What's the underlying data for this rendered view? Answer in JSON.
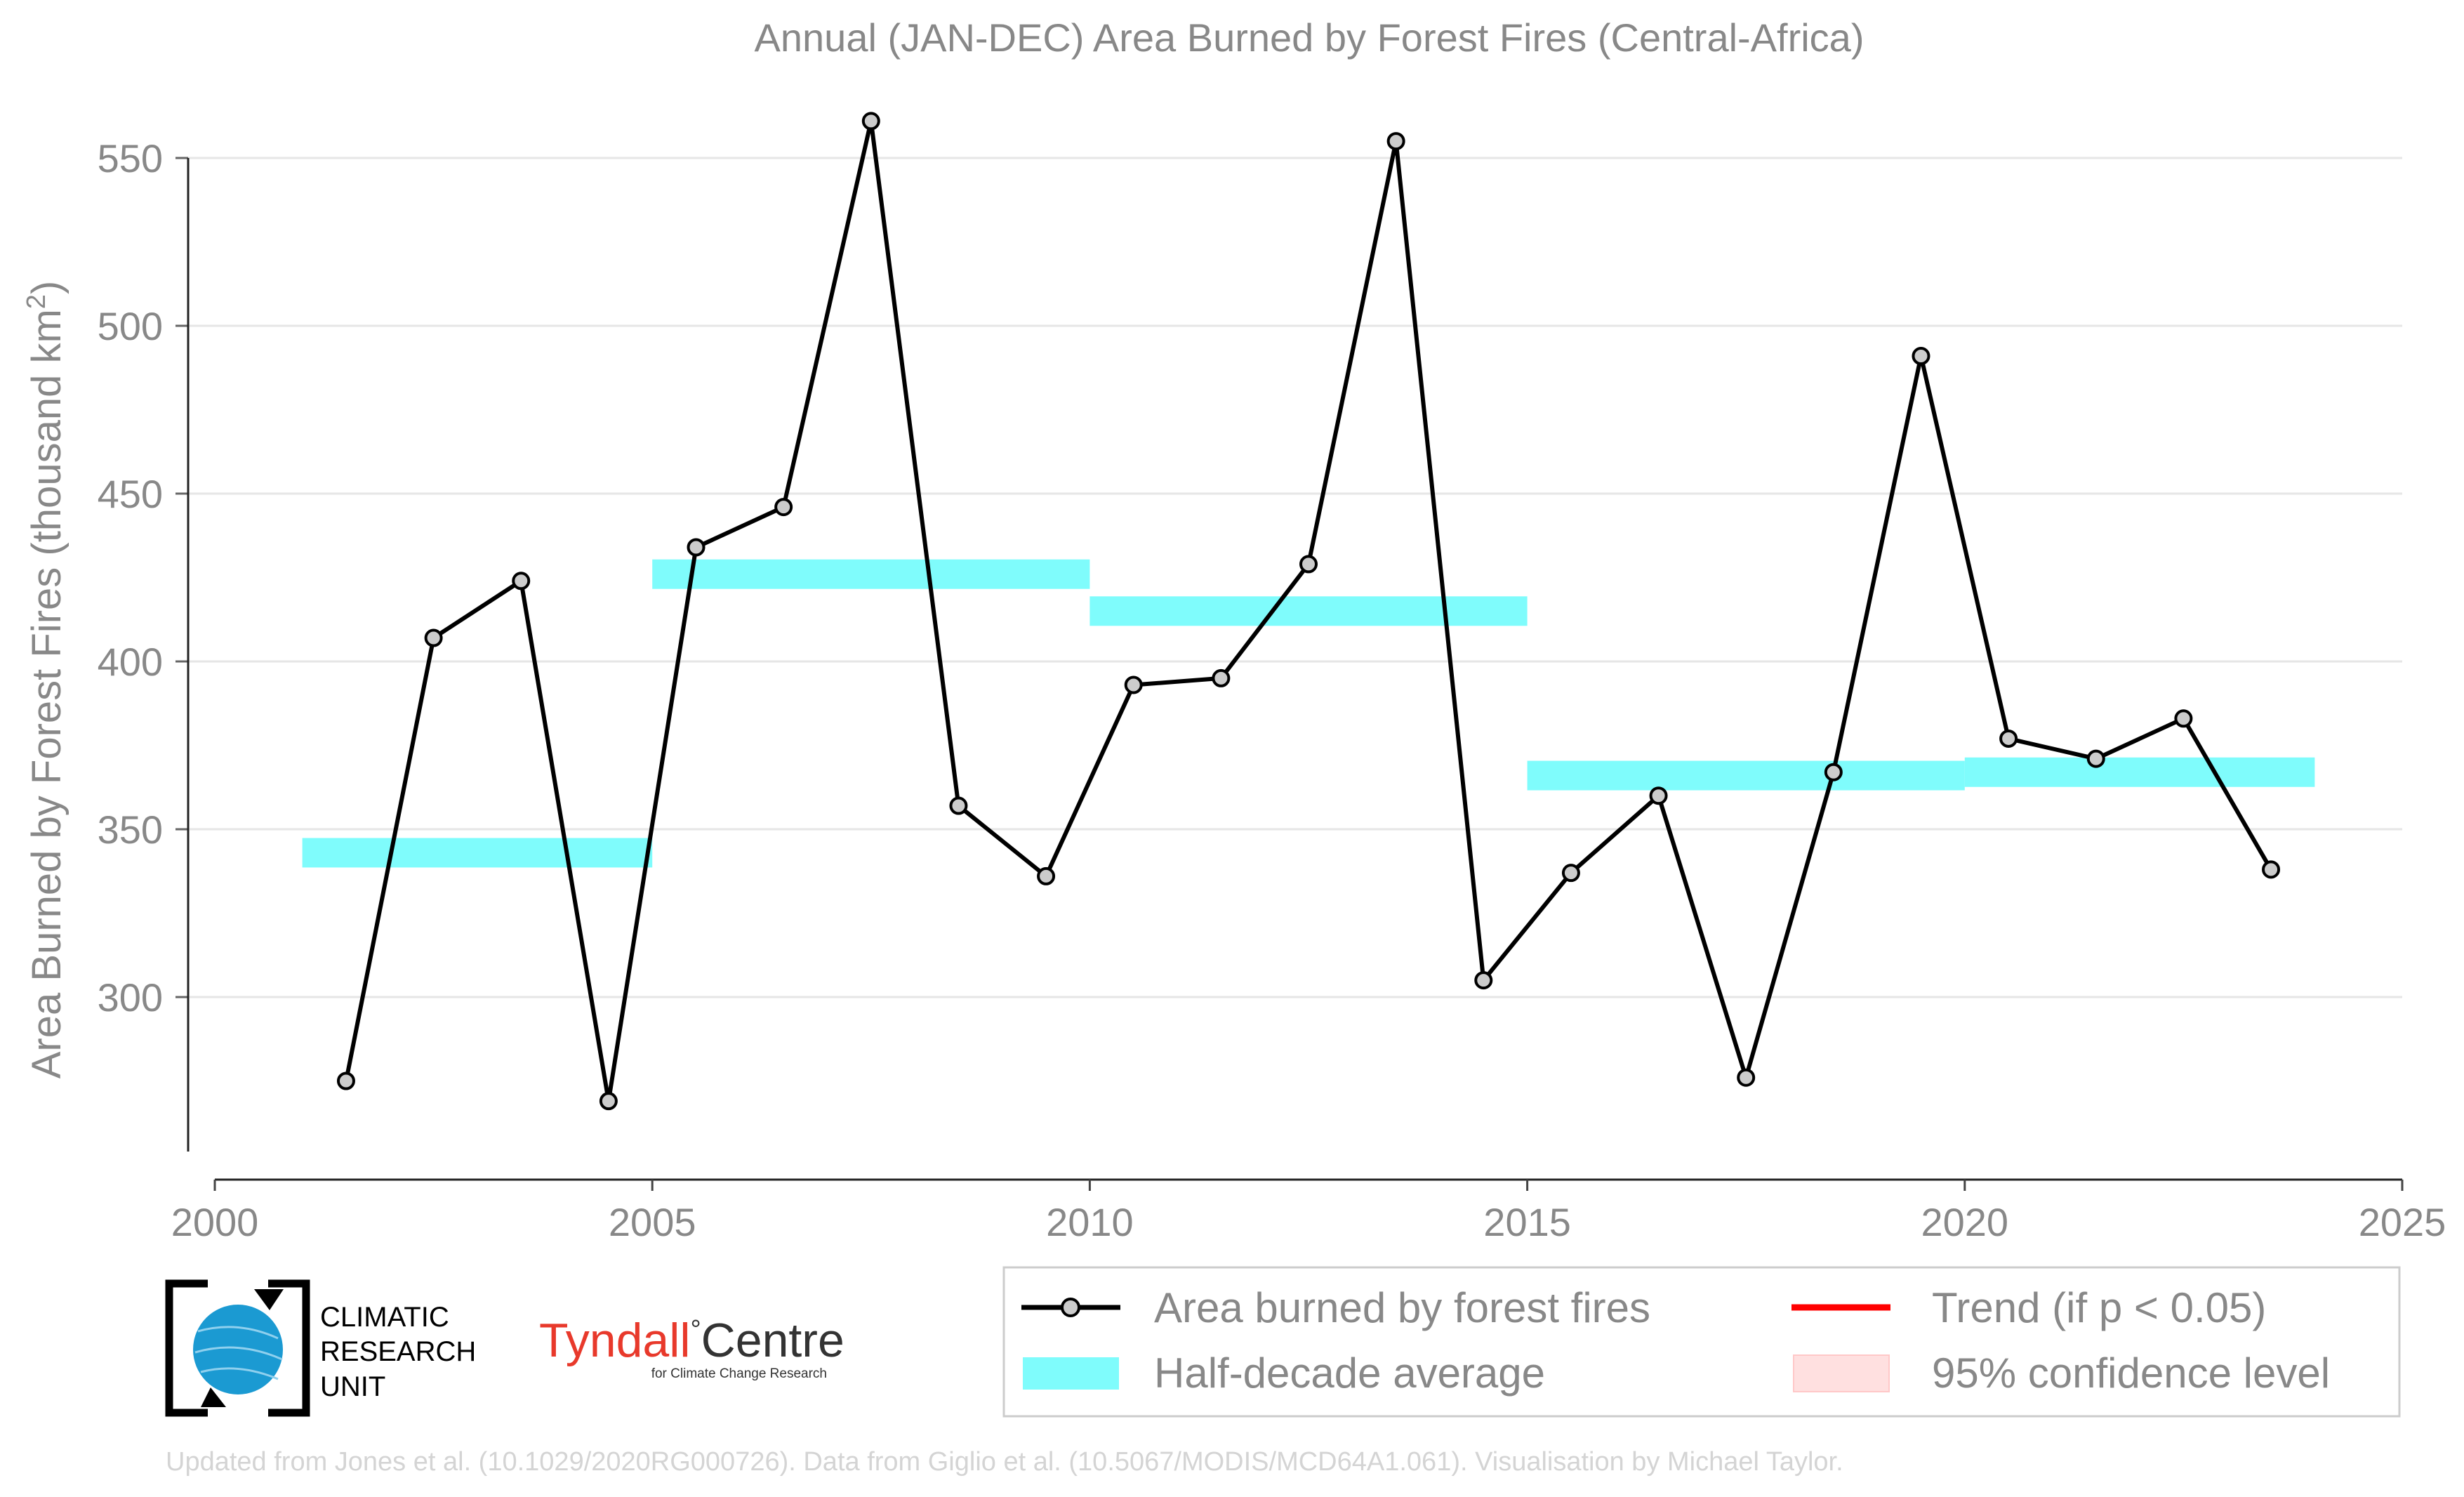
{
  "chart_data": {
    "type": "line",
    "title": "Annual (JAN-DEC) Area Burned by Forest Fires (Central-Africa)",
    "ylabel_main": "Area Burned by Forest Fires (thousand km",
    "ylabel_sup": "2",
    "ylabel_close": ")",
    "xlim": [
      2000,
      2025
    ],
    "ylim": [
      250,
      560
    ],
    "x_ticks": [
      2000,
      2005,
      2010,
      2015,
      2020,
      2025
    ],
    "y_ticks": [
      300,
      350,
      400,
      450,
      500,
      550
    ],
    "grid": "horizontal",
    "series": [
      {
        "name": "Area burned by forest fires",
        "color": "#000000",
        "x": [
          2001.5,
          2002.5,
          2003.5,
          2004.5,
          2005.5,
          2006.5,
          2007.5,
          2008.5,
          2009.5,
          2010.5,
          2011.5,
          2012.5,
          2013.5,
          2014.5,
          2015.5,
          2016.5,
          2017.5,
          2018.5,
          2019.5,
          2020.5,
          2021.5,
          2022.5,
          2023.5
        ],
        "y": [
          275,
          407,
          424,
          269,
          434,
          446,
          561,
          357,
          336,
          393,
          395,
          429,
          555,
          305,
          337,
          360,
          276,
          367,
          491,
          377,
          371,
          383,
          338
        ]
      }
    ],
    "half_decade_average": {
      "name": "Half-decade average",
      "color": "#7ffcfc",
      "segments": [
        {
          "x_start": 2001,
          "x_end": 2005,
          "y": 343
        },
        {
          "x_start": 2005,
          "x_end": 2010,
          "y": 426
        },
        {
          "x_start": 2010,
          "x_end": 2015,
          "y": 415
        },
        {
          "x_start": 2015,
          "x_end": 2020,
          "y": 366
        },
        {
          "x_start": 2020,
          "x_end": 2024,
          "y": 367
        }
      ]
    },
    "legend": {
      "position": "bottom-right",
      "entries": [
        {
          "label": "Area burned by forest fires",
          "kind": "line-marker",
          "color": "#000000"
        },
        {
          "label": "Trend (if p < 0.05)",
          "kind": "line",
          "color": "#ff0000"
        },
        {
          "label": "Half-decade average",
          "kind": "band",
          "color": "#7ffcfc"
        },
        {
          "label": "95% confidence level",
          "kind": "band",
          "color": "#ffe0e0"
        }
      ]
    }
  },
  "logos": {
    "cru_lines": [
      "CLIMATIC",
      "RESEARCH",
      "UNIT"
    ],
    "tyndall_name": "Tyndall",
    "tyndall_degree": "°",
    "tyndall_centre": "Centre",
    "tyndall_sub": "for Climate Change Research"
  },
  "credit": "Updated from Jones et al. (10.1029/2020RG000726). Data from Giglio et al. (10.5067/MODIS/MCD64A1.061). Visualisation by Michael Taylor."
}
